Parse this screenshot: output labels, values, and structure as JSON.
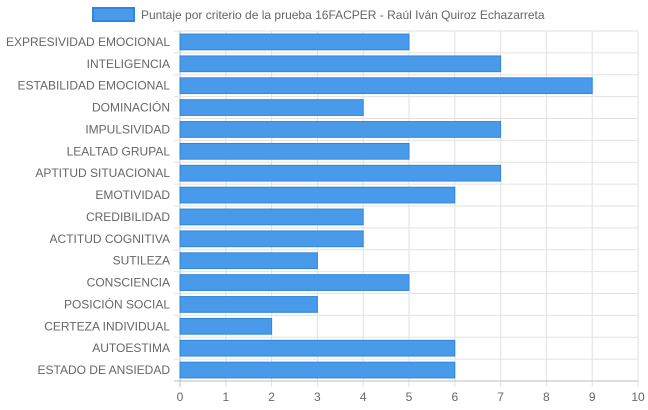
{
  "chart_data": {
    "type": "bar",
    "orientation": "horizontal",
    "legend": {
      "position": "top",
      "label": "Puntaje por criterio de la prueba 16FACPER - Raúl Iván Quiroz Echazarreta"
    },
    "categories": [
      "EXPRESIVIDAD EMOCIONAL",
      "INTELIGENCIA",
      "ESTABILIDAD EMOCIONAL",
      "DOMINACIÓN",
      "IMPULSIVIDAD",
      "LEALTAD GRUPAL",
      "APTITUD SITUACIONAL",
      "EMOTIVIDAD",
      "CREDIBILIDAD",
      "ACTITUD COGNITIVA",
      "SUTILEZA",
      "CONSCIENCIA",
      "POSICIÓN SOCIAL",
      "CERTEZA INDIVIDUAL",
      "AUTOESTIMA",
      "ESTADO DE ANSIEDAD"
    ],
    "series": [
      {
        "name": "Puntaje por criterio de la prueba 16FACPER - Raúl Iván Quiroz Echazarreta",
        "values": [
          5,
          7,
          9,
          4,
          7,
          5,
          7,
          6,
          4,
          4,
          3,
          5,
          3,
          2,
          6,
          6
        ]
      }
    ],
    "xlim": [
      0,
      10
    ],
    "x_ticks": [
      0,
      1,
      2,
      3,
      4,
      5,
      6,
      7,
      8,
      9,
      10
    ],
    "grid": true,
    "colors": {
      "bar_fill": "#4a9aea",
      "bar_stroke": "#2f86dd",
      "grid": "#e2e2e2",
      "axis": "#bdbdbd"
    }
  }
}
